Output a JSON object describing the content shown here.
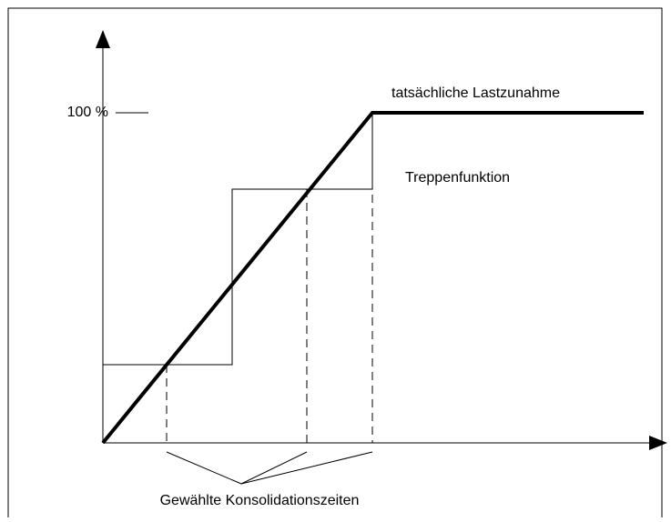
{
  "labels": {
    "y_top": "100 %",
    "curve": "tatsächliche Lastzunahme",
    "steps": "Treppenfunktion",
    "times": "Gewählte Konsolidationszeiten"
  }
}
